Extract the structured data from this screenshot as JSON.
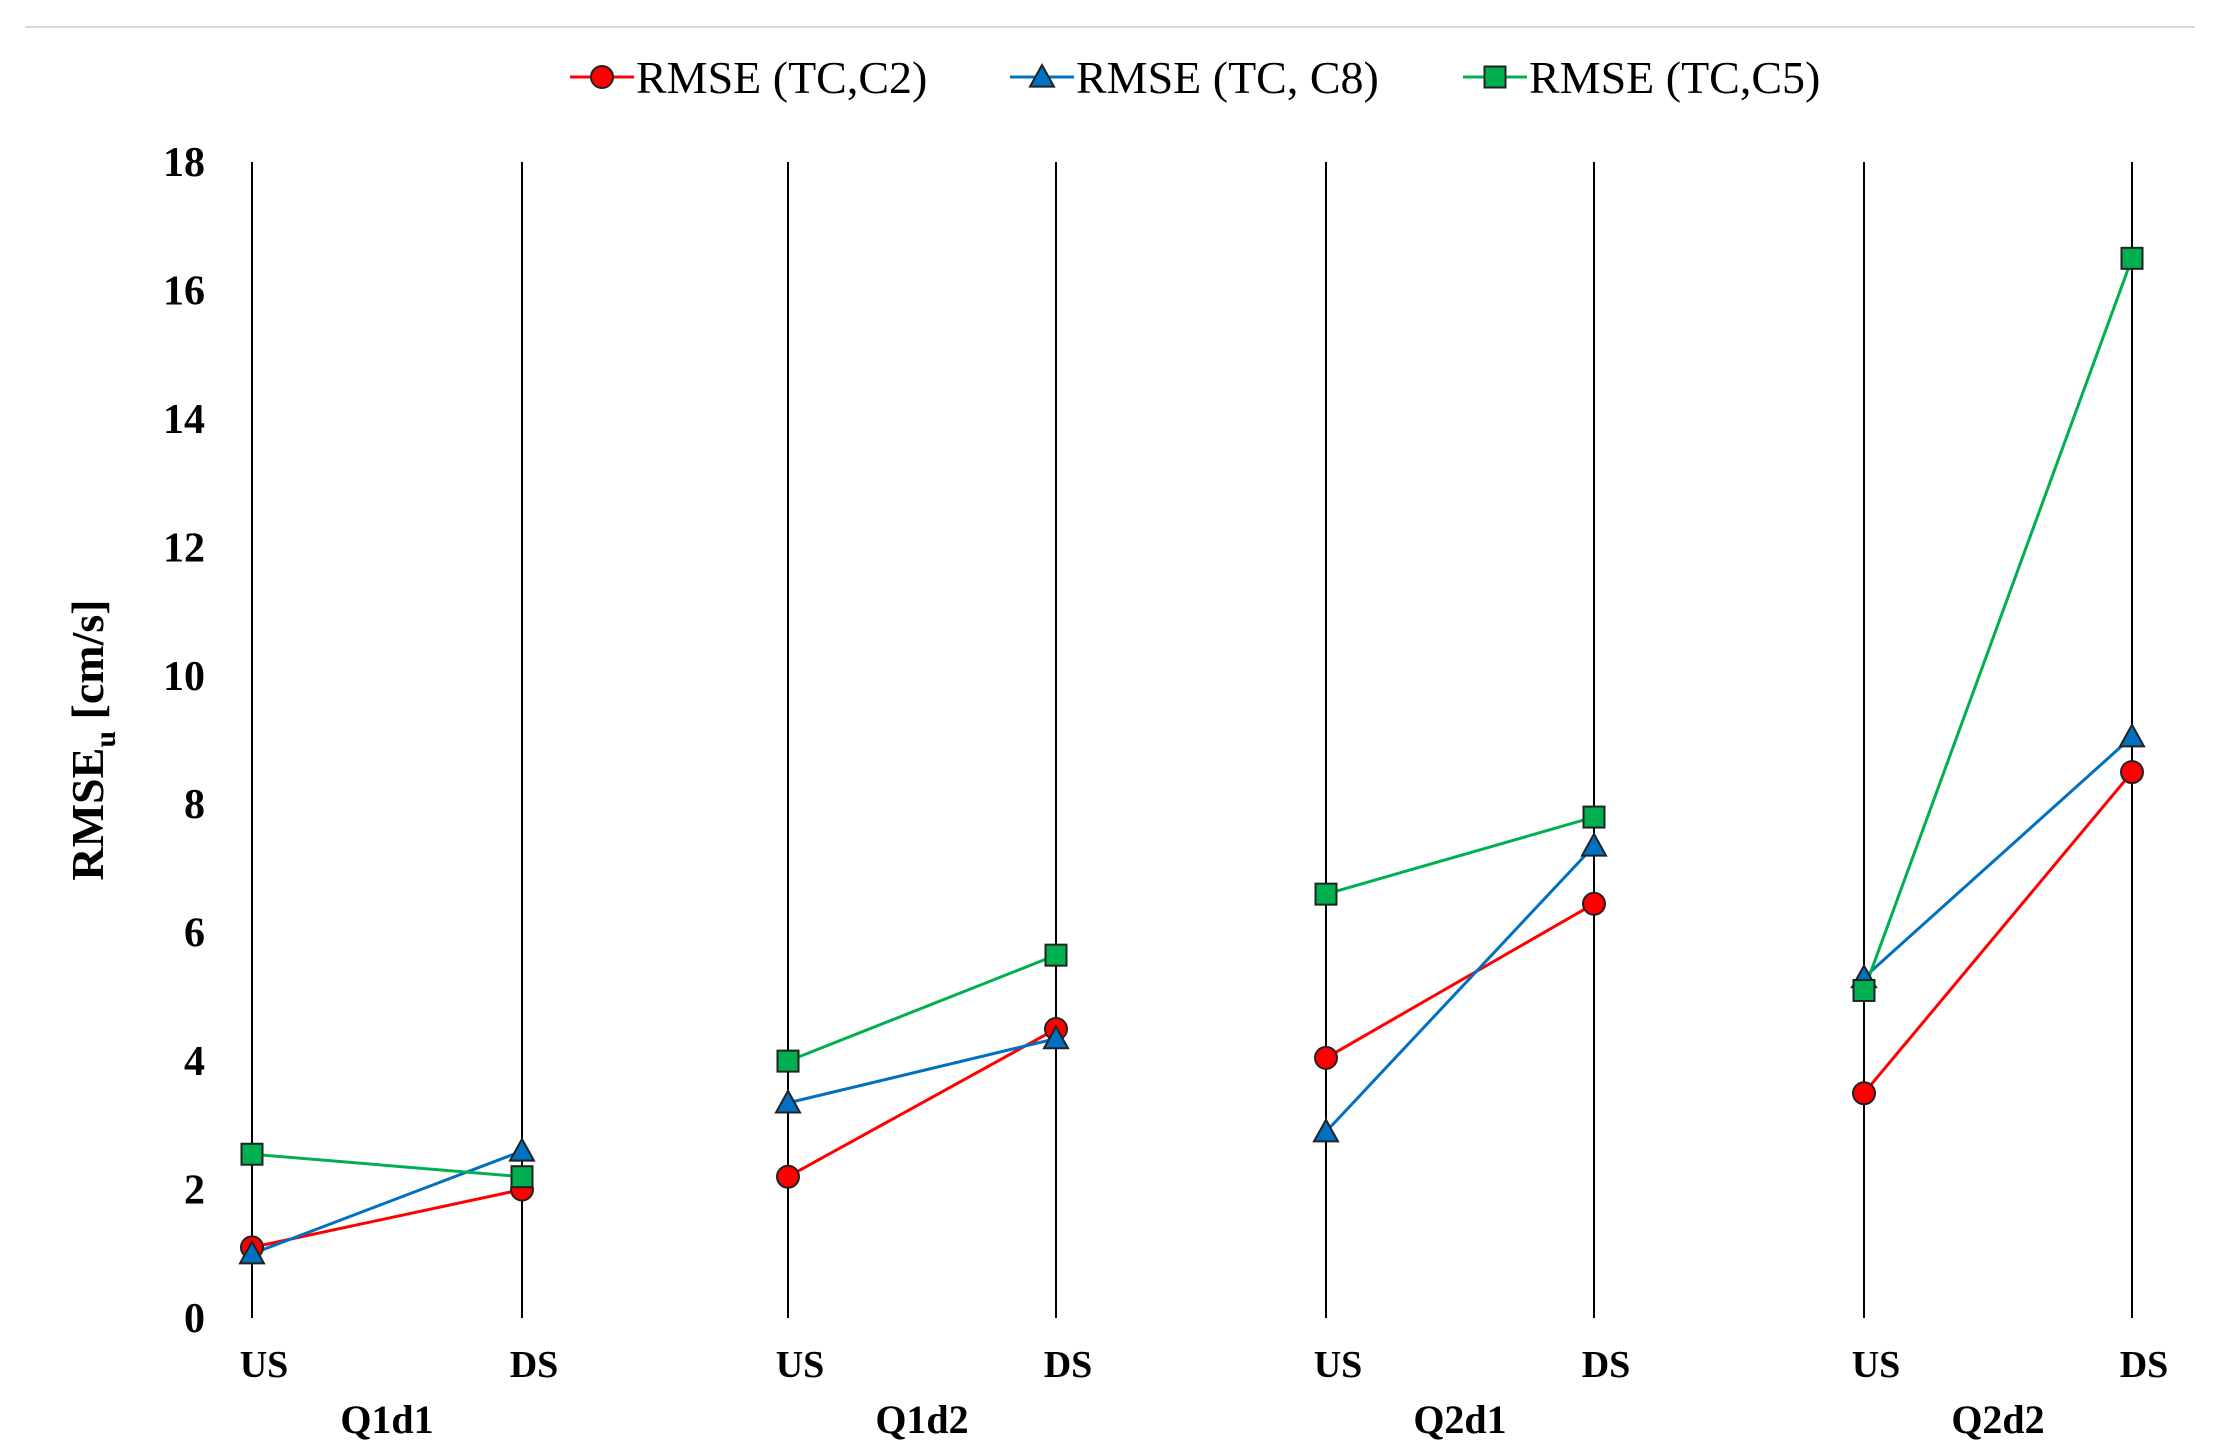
{
  "chart_data": {
    "type": "line",
    "title": "",
    "ylabel": {
      "main": "RMSE",
      "sub": "u",
      "unit": "[cm/s]"
    },
    "xlabel": "",
    "ylim": [
      0,
      18
    ],
    "yticks": [
      0,
      2,
      4,
      6,
      8,
      10,
      12,
      14,
      16,
      18
    ],
    "legend_position": "top-center",
    "groups": [
      {
        "label": "Q1d1",
        "categories": [
          "US",
          "DS"
        ]
      },
      {
        "label": "Q1d2",
        "categories": [
          "US",
          "DS"
        ]
      },
      {
        "label": "Q2d1",
        "categories": [
          "US",
          "DS"
        ]
      },
      {
        "label": "Q2d2",
        "categories": [
          "US",
          "DS"
        ]
      }
    ],
    "series": [
      {
        "name": "RMSE (TC,C2)",
        "color": "#ff0000",
        "marker": "circle",
        "values": [
          [
            1.1,
            2.0
          ],
          [
            2.2,
            4.5
          ],
          [
            4.05,
            6.45
          ],
          [
            3.5,
            8.5
          ]
        ]
      },
      {
        "name": "RMSE (TC, C8)",
        "color": "#0070c0",
        "marker": "triangle",
        "values": [
          [
            1.0,
            2.6
          ],
          [
            3.35,
            4.35
          ],
          [
            2.9,
            7.35
          ],
          [
            5.3,
            9.05
          ]
        ]
      },
      {
        "name": "RMSE (TC,C5)",
        "color": "#00b050",
        "marker": "square",
        "values": [
          [
            2.55,
            2.2
          ],
          [
            4.0,
            5.65
          ],
          [
            6.6,
            7.8
          ],
          [
            5.1,
            16.5
          ]
        ]
      }
    ]
  }
}
